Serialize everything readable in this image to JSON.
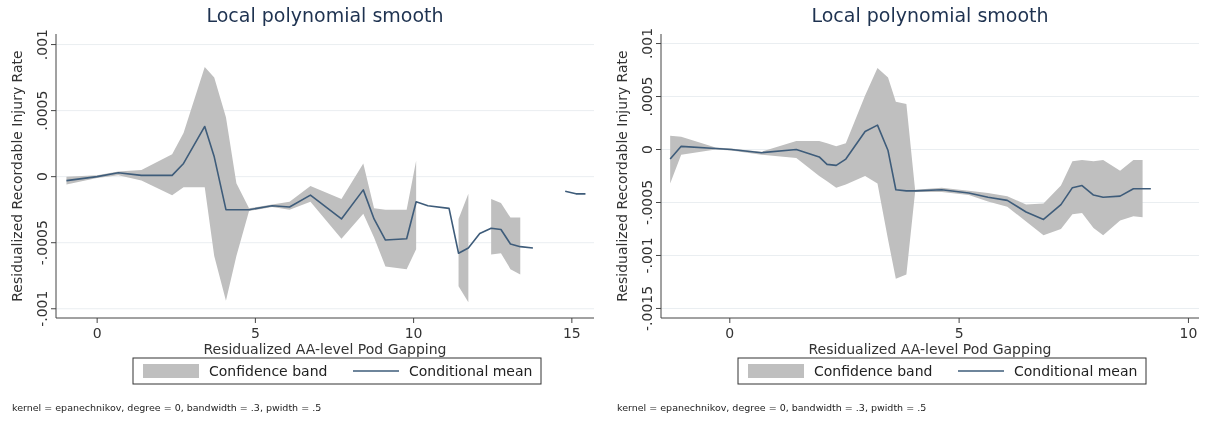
{
  "chart_data": [
    {
      "type": "line",
      "title": "Local polynomial smooth",
      "xlabel": "Residualized AA-level Pod Gapping",
      "ylabel": "Residualized Recordable Injury Rate",
      "xlim": [
        -1.3,
        15.7
      ],
      "ylim": [
        -0.00107,
        0.00108
      ],
      "xticks": [
        0,
        5,
        10,
        15
      ],
      "yticks": [
        {
          "value": -0.001,
          "label": "-.001"
        },
        {
          "value": -0.0005,
          "label": "-.0005"
        },
        0,
        {
          "value": 0.0005,
          "label": ".0005"
        },
        {
          "value": 0.001,
          "label": ".001"
        }
      ],
      "grid": "y",
      "legend": "bottom",
      "annotations": [
        "kernel = epanechnikov, degree = 0, bandwidth = .3, pwidth = .5"
      ],
      "series": [
        {
          "name": "Confidence band",
          "type": "area",
          "color": "#bfbfbf"
        },
        {
          "name": "Conditional mean",
          "type": "line",
          "color": "#3e5c7a",
          "x": [
            -0.97,
            0,
            0.67,
            1.4,
            2.37,
            2.73,
            3.4,
            3.7,
            4.07,
            4.4,
            4.8,
            5.53,
            6.08,
            6.74,
            7.72,
            8.41,
            8.75,
            9.11,
            9.78,
            10.08,
            10.45,
            11.12,
            11.42,
            11.73,
            12.09,
            12.45,
            12.76,
            13.06,
            13.37,
            13.77,
            14.3,
            14.79,
            15.13,
            15.43
          ],
          "values": [
            -3e-05,
            0,
            3e-05,
            1e-05,
            1e-05,
            0.0001,
            0.00038,
            0.00015,
            -0.00025,
            -0.00025,
            -0.00025,
            -0.00022,
            -0.00023,
            -0.00014,
            -0.00032,
            -0.0001,
            -0.00032,
            -0.00048,
            -0.00047,
            -0.00019,
            -0.00022,
            -0.00024,
            -0.00058,
            -0.00054,
            -0.00043,
            -0.00039,
            -0.0004,
            -0.00051,
            -0.00053,
            -0.00054,
            null,
            -0.00011,
            -0.00013,
            -0.00013
          ],
          "upper": [
            0,
            1e-05,
            4e-05,
            5e-05,
            0.00017,
            0.00033,
            0.00083,
            0.00075,
            0.00045,
            -5e-05,
            -0.00024,
            -0.00021,
            -0.00019,
            -7e-05,
            -0.00017,
            0.0001,
            -0.00024,
            -0.00025,
            -0.00025,
            0.00012,
            null,
            null,
            -0.00032,
            -0.00013,
            null,
            -0.00017,
            -0.0002,
            -0.00031,
            -0.00031,
            null,
            null,
            null,
            null,
            null
          ],
          "lower": [
            -6e-05,
            -1e-05,
            1e-05,
            -3e-05,
            -0.00014,
            -8e-05,
            -8e-05,
            -0.0006,
            -0.00094,
            -0.0006,
            -0.00026,
            -0.00023,
            -0.00025,
            -0.00019,
            -0.00047,
            -0.00028,
            -0.00046,
            -0.00068,
            -0.0007,
            -0.00055,
            null,
            null,
            -0.00083,
            -0.00095,
            null,
            -0.00059,
            -0.00058,
            -0.0007,
            -0.00074,
            null,
            null,
            null,
            null,
            null
          ]
        }
      ]
    },
    {
      "type": "line",
      "title": "Local polynomial smooth",
      "xlabel": "Residualized AA-level Pod Gapping",
      "ylabel": "Residualized Recordable Injury Rate",
      "xlim": [
        -1.5,
        10.23
      ],
      "ylim": [
        -0.00159,
        0.00109
      ],
      "xticks": [
        0,
        5,
        10
      ],
      "yticks": [
        {
          "value": -0.0015,
          "label": "-.0015"
        },
        {
          "value": -0.001,
          "label": "-.001"
        },
        {
          "value": -0.0005,
          "label": "-.0005"
        },
        0,
        {
          "value": 0.0005,
          "label": ".0005"
        },
        {
          "value": 0.001,
          "label": ".001"
        }
      ],
      "grid": "y",
      "legend": "bottom",
      "annotations": [
        "kernel = epanechnikov, degree = 0, bandwidth = .3, pwidth = .5"
      ],
      "series": [
        {
          "name": "Confidence band",
          "type": "area",
          "color": "#bfbfbf"
        },
        {
          "name": "Conditional mean",
          "type": "line",
          "color": "#3e5c7a",
          "x": [
            -1.3,
            -1.06,
            -0.31,
            0.03,
            0.69,
            1.45,
            1.95,
            2.12,
            2.32,
            2.53,
            2.95,
            3.22,
            3.45,
            3.62,
            3.85,
            4.04,
            4.62,
            5.21,
            5.63,
            6.05,
            6.46,
            6.84,
            7.22,
            7.47,
            7.68,
            7.93,
            8.14,
            8.51,
            8.8,
            9,
            9.18
          ],
          "values": [
            -9e-05,
            3e-05,
            1e-05,
            0,
            -3e-05,
            0,
            -7e-05,
            -0.00014,
            -0.00015,
            -9e-05,
            0.00017,
            0.00023,
            -1e-05,
            -0.00038,
            -0.00039,
            -0.00039,
            -0.00038,
            -0.00041,
            -0.00045,
            -0.00048,
            -0.00059,
            -0.00066,
            -0.00052,
            -0.00036,
            -0.00034,
            -0.00043,
            -0.00045,
            -0.00044,
            -0.00037,
            -0.00037,
            -0.00037
          ],
          "upper": [
            0.00013,
            0.00012,
            2e-05,
            1e-05,
            -2e-05,
            8e-05,
            8e-05,
            6e-05,
            3e-05,
            6e-05,
            0.00051,
            0.00077,
            0.00068,
            0.00045,
            0.00043,
            -0.00038,
            -0.00036,
            -0.00039,
            -0.00041,
            -0.00044,
            -0.00052,
            -0.00051,
            -0.00034,
            -0.00011,
            -0.0001,
            -0.00011,
            -0.0001,
            -0.0002,
            -0.0001,
            -0.0001,
            null
          ],
          "lower": [
            -0.00032,
            -5e-05,
            0,
            -1e-05,
            -5e-05,
            -8e-05,
            -0.00025,
            -0.0003,
            -0.00036,
            -0.00033,
            -0.00025,
            -0.00032,
            -0.00085,
            -0.00122,
            -0.00118,
            -0.0004,
            -0.0004,
            -0.00043,
            -0.00049,
            -0.00054,
            -0.00068,
            -0.00081,
            -0.00075,
            -0.00061,
            -0.0006,
            -0.00074,
            -0.00081,
            -0.00067,
            -0.00063,
            -0.00064,
            null
          ]
        }
      ]
    }
  ]
}
